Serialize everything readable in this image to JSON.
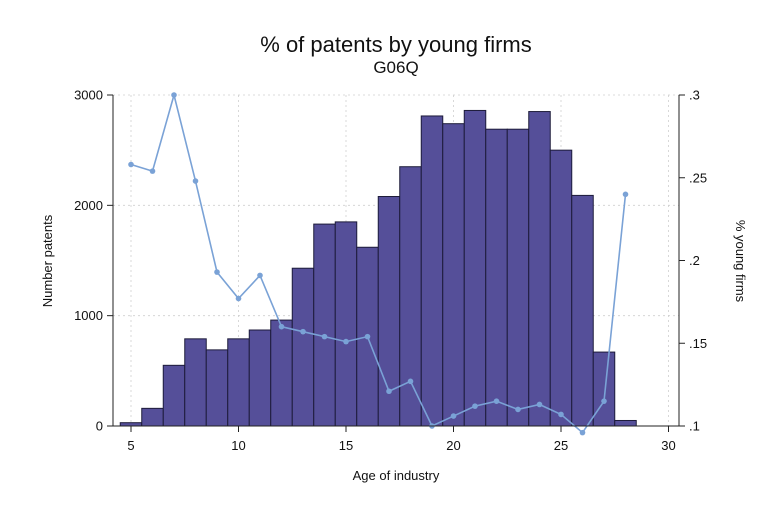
{
  "chart_data": {
    "type": "bar",
    "title": "% of patents by young firms",
    "subtitle": "G06Q",
    "xlabel": "Age of industry",
    "ylabel": "Number patents",
    "y2label": "% young firms",
    "xlim": [
      4.5,
      30
    ],
    "ylim": [
      0,
      3000
    ],
    "y2lim": [
      0.1,
      0.3
    ],
    "x_ticks": [
      "5",
      "10",
      "15",
      "20",
      "25",
      "30"
    ],
    "y_ticks": [
      "0",
      "1000",
      "2000",
      "3000"
    ],
    "y2_ticks": [
      ".1",
      ".15",
      ".2",
      ".25",
      ".3"
    ],
    "grid": true,
    "series": [
      {
        "type": "bar",
        "axis": "left",
        "color": "#554f99",
        "x": [
          5,
          6,
          7,
          8,
          9,
          10,
          11,
          12,
          13,
          14,
          15,
          16,
          17,
          18,
          19,
          20,
          21,
          22,
          23,
          24,
          25,
          26,
          27,
          28
        ],
        "values": [
          30,
          160,
          550,
          790,
          690,
          790,
          870,
          960,
          1430,
          1830,
          1850,
          1620,
          2080,
          2350,
          2810,
          2740,
          2860,
          2690,
          2690,
          2850,
          2500,
          2090,
          670,
          50
        ]
      },
      {
        "type": "line",
        "axis": "right",
        "color": "#7aa2d6",
        "x": [
          5,
          6,
          7,
          8,
          9,
          10,
          11,
          12,
          13,
          14,
          15,
          16,
          17,
          18,
          19,
          20,
          21,
          22,
          23,
          24,
          25,
          26,
          27,
          28
        ],
        "values": [
          0.258,
          0.254,
          0.3,
          0.248,
          0.193,
          0.177,
          0.191,
          0.16,
          0.157,
          0.154,
          0.151,
          0.154,
          0.121,
          0.127,
          0.1,
          0.106,
          0.112,
          0.115,
          0.11,
          0.113,
          0.107,
          0.096,
          0.115,
          0.24
        ]
      }
    ]
  }
}
